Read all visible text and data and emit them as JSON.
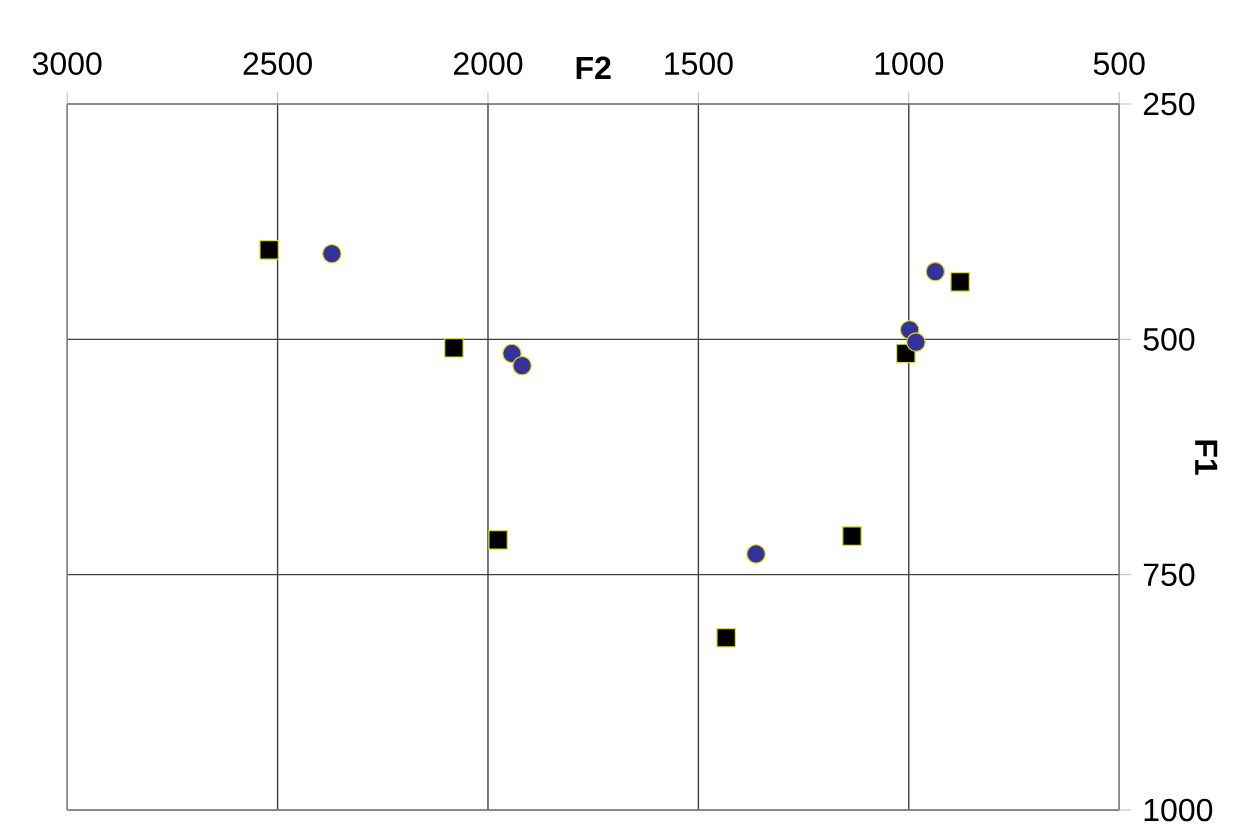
{
  "chart_data": {
    "type": "scatter",
    "xlabel": "F2",
    "ylabel": "F1",
    "xlim": [
      3000,
      500
    ],
    "ylim": [
      1000,
      250
    ],
    "xticks": [
      3000,
      2500,
      2000,
      1500,
      1000,
      500
    ],
    "yticks": [
      250,
      500,
      750,
      1000
    ],
    "grid": true,
    "series": [
      {
        "color": "#000000",
        "marker": "square",
        "x": [
          2520,
          2081,
          1976,
          1135,
          1434,
          1007,
          878
        ],
        "values": [
          405,
          509,
          713,
          709,
          817,
          515,
          439
        ]
      },
      {
        "color": "#333399",
        "marker": "circle",
        "x": [
          2371,
          1943,
          1919,
          1363,
          998,
          983,
          937
        ],
        "values": [
          409,
          515,
          528,
          728,
          490,
          503,
          428
        ]
      }
    ]
  }
}
